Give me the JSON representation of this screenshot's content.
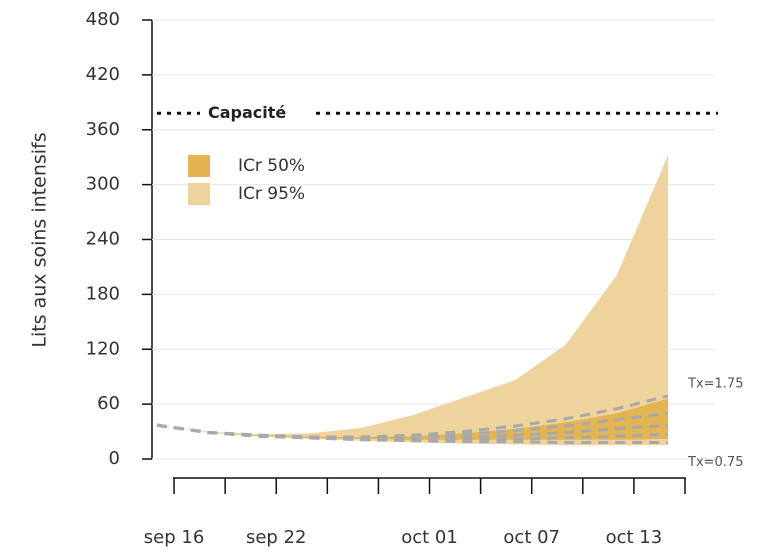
{
  "chart_data": {
    "type": "line",
    "y_label": "Lits aux soins intensifs",
    "x": [
      "sep 15",
      "sep 18",
      "sep 21",
      "sep 24",
      "sep 27",
      "sep 30",
      "oct 03",
      "oct 06",
      "oct 09",
      "oct 12",
      "oct 15"
    ],
    "xlim": [
      "sep 15",
      "oct 16"
    ],
    "xticks": [
      "sep 16",
      {
        "value": "sep 19",
        "label": null
      },
      "sep 22",
      {
        "value": "sep 25",
        "label": null
      },
      {
        "value": "sep 28",
        "label": null
      },
      "oct 01",
      {
        "value": "oct 04",
        "label": null
      },
      "oct 07",
      {
        "value": "oct 10",
        "label": null
      },
      "oct 13",
      {
        "value": "oct 16",
        "label": null
      }
    ],
    "ylim": [
      0,
      480
    ],
    "yticks": [
      0,
      60,
      120,
      180,
      240,
      300,
      360,
      420,
      480
    ],
    "grid": true,
    "bands": [
      {
        "name": "ICr 50%",
        "color": "#e2b552",
        "lower": [
          37,
          29,
          25,
          23,
          22,
          21,
          21,
          21,
          21,
          21,
          22
        ],
        "upper": [
          37,
          29,
          26,
          24,
          24,
          25,
          28,
          33,
          40,
          50,
          66
        ]
      },
      {
        "name": "ICr 95%",
        "color": "#eed39d",
        "lower": [
          37,
          29,
          25,
          22,
          20,
          18,
          17,
          16,
          15,
          15,
          15
        ],
        "upper": [
          37,
          30,
          27,
          28,
          34,
          48,
          67,
          86,
          125,
          201,
          332
        ]
      }
    ],
    "series": [
      {
        "name": "Tx=1.75",
        "color": "#a9a9a9",
        "values": [
          37,
          29,
          26,
          24,
          24,
          26,
          30,
          36,
          44,
          55,
          69
        ]
      },
      {
        "color": "#a9a9a9",
        "values": [
          37,
          29,
          26,
          24,
          23,
          24,
          27,
          31,
          36,
          43,
          50
        ]
      },
      {
        "color": "#a9a9a9",
        "values": [
          37,
          29,
          25,
          23,
          22,
          22,
          24,
          26,
          29,
          33,
          37
        ]
      },
      {
        "color": "#a9a9a9",
        "values": [
          37,
          29,
          25,
          23,
          22,
          21,
          21,
          22,
          23,
          25,
          27
        ]
      },
      {
        "name": "Tx=0.75",
        "color": "#a9a9a9",
        "values": [
          37,
          29,
          25,
          23,
          21,
          20,
          19,
          19,
          18,
          18,
          18
        ]
      }
    ],
    "capacity": {
      "label": "Capacité",
      "value": 378,
      "color": "#111111"
    }
  }
}
